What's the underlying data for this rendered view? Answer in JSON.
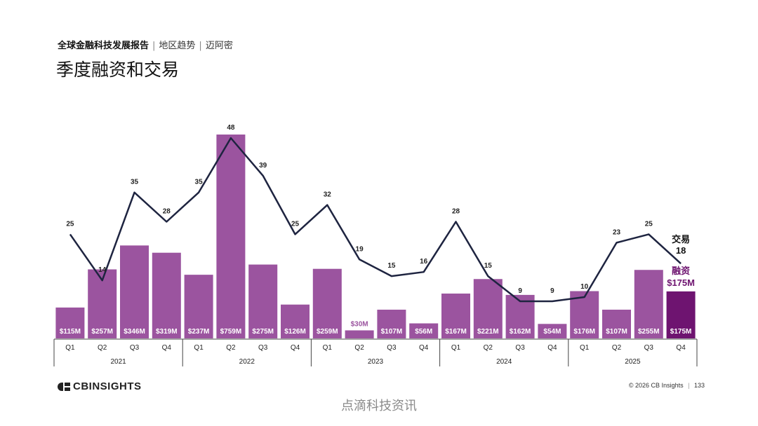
{
  "header": {
    "report": "全球金融科技发展报告",
    "section": "地区趋势",
    "city": "迈阿密",
    "title": "季度融资和交易"
  },
  "chart_data": {
    "type": "bar",
    "title": "季度融资和交易",
    "quarters": [
      "Q1",
      "Q2",
      "Q3",
      "Q4",
      "Q1",
      "Q2",
      "Q3",
      "Q4",
      "Q1",
      "Q2",
      "Q3",
      "Q4",
      "Q1",
      "Q2",
      "Q3",
      "Q4",
      "Q1",
      "Q2",
      "Q3",
      "Q4"
    ],
    "years": [
      "2021",
      "2022",
      "2023",
      "2024",
      "2025"
    ],
    "series": [
      {
        "name": "融资",
        "type": "bar",
        "values": [
          115,
          257,
          346,
          319,
          237,
          759,
          275,
          126,
          259,
          30,
          107,
          56,
          167,
          221,
          162,
          54,
          176,
          107,
          255,
          175
        ],
        "labels": [
          "$115M",
          "$257M",
          "$346M",
          "$319M",
          "$237M",
          "$759M",
          "$275M",
          "$126M",
          "$259M",
          "$30M",
          "$107M",
          "$56M",
          "$167M",
          "$221M",
          "$162M",
          "$54M",
          "$176M",
          "$107M",
          "$255M",
          "$175M"
        ]
      },
      {
        "name": "交易",
        "type": "line",
        "values": [
          25,
          14,
          35,
          28,
          35,
          48,
          39,
          25,
          32,
          19,
          15,
          16,
          28,
          15,
          9,
          9,
          10,
          23,
          25,
          18
        ]
      }
    ],
    "callout": {
      "deals_label": "交易",
      "deals_value": "18",
      "funding_label": "融资",
      "funding_value": "$175M"
    },
    "colors": {
      "bar": "#9b549f",
      "bar_last": "#6e1470",
      "line": "#1e2440",
      "bar_label_inside": "#ffffff",
      "bar_label_outside": "#9b549f"
    }
  },
  "footer": {
    "logo_text": "CBINSIGHTS",
    "copyright": "© 2026 CB Insights",
    "page": "133",
    "watermark": "点滴科技资讯"
  }
}
